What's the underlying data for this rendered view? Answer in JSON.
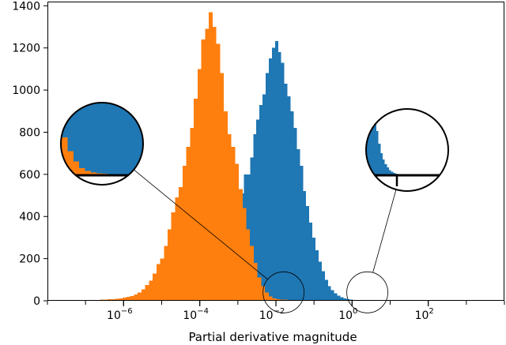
{
  "chart_data": {
    "type": "bar",
    "title": "",
    "xlabel": "Partial derivative magnitude",
    "ylabel": "",
    "x_scale": "log",
    "xlim": [
      1e-08,
      10000.0
    ],
    "ylim": [
      0,
      1420
    ],
    "grid": false,
    "legend": "none",
    "x_ticks": [
      {
        "value": 1e-06,
        "base": "10",
        "exp": "-6"
      },
      {
        "value": 0.0001,
        "base": "10",
        "exp": "-4"
      },
      {
        "value": 0.01,
        "base": "10",
        "exp": "-2"
      },
      {
        "value": 1,
        "base": "10",
        "exp": "0"
      },
      {
        "value": 100,
        "base": "10",
        "exp": "2"
      }
    ],
    "y_ticks": [
      0,
      200,
      400,
      600,
      800,
      1000,
      1200,
      1400
    ],
    "series": [
      {
        "color": "#1f77b4",
        "bin_range_log10": [
          -3.25,
          1.0
        ],
        "counts": [
          10,
          60,
          140,
          300,
          510,
          600,
          600,
          680,
          790,
          860,
          930,
          980,
          1080,
          1150,
          1200,
          1233,
          1180,
          1130,
          1030,
          970,
          900,
          820,
          720,
          640,
          520,
          450,
          370,
          300,
          240,
          185,
          140,
          100,
          70,
          50,
          35,
          25,
          16,
          11,
          8,
          5,
          4,
          3,
          2,
          2,
          1,
          1,
          1,
          0,
          1,
          1,
          1,
          0
        ]
      },
      {
        "color": "#ff7f0e",
        "bin_range_log10": [
          -7.5,
          -1.5
        ],
        "counts": [
          1,
          1,
          2,
          2,
          2,
          3,
          3,
          4,
          4,
          5,
          6,
          7,
          8,
          10,
          12,
          15,
          18,
          22,
          30,
          40,
          55,
          75,
          95,
          130,
          175,
          200,
          260,
          340,
          420,
          490,
          540,
          640,
          730,
          820,
          960,
          1100,
          1240,
          1290,
          1370,
          1300,
          1220,
          1080,
          900,
          790,
          730,
          650,
          530,
          440,
          340,
          260,
          180,
          110,
          70,
          40,
          20,
          12,
          8,
          6,
          5,
          3,
          2
        ]
      }
    ],
    "zoom_insets": [
      {
        "target_log10": -1.8,
        "target_count": 40
      },
      {
        "target_log10": 0.4,
        "target_count": 40
      }
    ]
  }
}
